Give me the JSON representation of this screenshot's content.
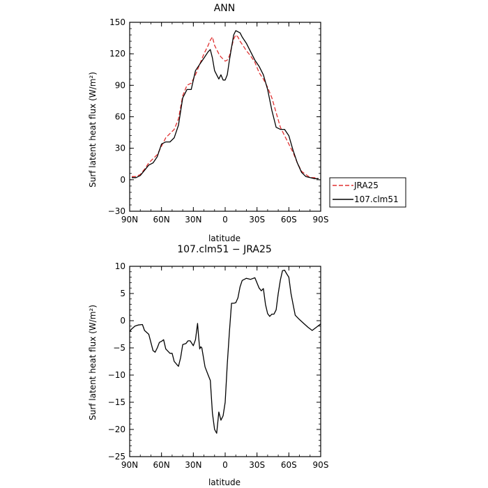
{
  "chart_data": [
    {
      "type": "line",
      "title": "ANN",
      "xlabel": "latitude",
      "ylabel": "Surf latent heat flux (W/m²)",
      "xlim": [
        90,
        -90
      ],
      "ylim": [
        -30,
        150
      ],
      "xticks": [
        90,
        60,
        30,
        0,
        -30,
        -60,
        -90
      ],
      "xtick_labels": [
        "90N",
        "60N",
        "30N",
        "0",
        "30S",
        "60S",
        "90S"
      ],
      "yticks": [
        -30,
        0,
        30,
        60,
        90,
        120,
        150
      ],
      "ytick_labels": [
        "−30",
        "0",
        "30",
        "60",
        "90",
        "120",
        "150"
      ],
      "legend": {
        "placement": "right",
        "entries": [
          "JRA25",
          "107.clm51"
        ]
      },
      "series": [
        {
          "name": "JRA25",
          "color": "#e03030",
          "dash": "dashed",
          "x": [
            88,
            84,
            80,
            76,
            72,
            68,
            64,
            60,
            56,
            52,
            48,
            44,
            40,
            36,
            32,
            28,
            24,
            20,
            16,
            14,
            12,
            10,
            8,
            6,
            4,
            2,
            0,
            -2,
            -4,
            -6,
            -8,
            -10,
            -12,
            -14,
            -16,
            -20,
            -24,
            -28,
            -32,
            -36,
            -40,
            -44,
            -48,
            -52,
            -56,
            -60,
            -64,
            -68,
            -72,
            -76,
            -80,
            -84,
            -88
          ],
          "y": [
            3,
            3,
            5,
            10,
            16,
            20,
            24,
            32,
            40,
            44,
            48,
            58,
            80,
            90,
            92,
            100,
            110,
            120,
            128,
            133,
            136,
            128,
            124,
            120,
            117,
            115,
            113,
            114,
            118,
            126,
            134,
            138,
            136,
            132,
            129,
            123,
            118,
            112,
            102,
            96,
            88,
            78,
            64,
            50,
            42,
            34,
            26,
            16,
            8,
            5,
            2,
            2,
            1
          ]
        },
        {
          "name": "107.clm51",
          "color": "#000000",
          "dash": "solid",
          "x": [
            88,
            84,
            80,
            76,
            72,
            68,
            64,
            60,
            56,
            52,
            48,
            44,
            40,
            36,
            32,
            28,
            24,
            20,
            16,
            14,
            12,
            10,
            8,
            6,
            4,
            2,
            0,
            -2,
            -4,
            -6,
            -8,
            -10,
            -12,
            -14,
            -16,
            -20,
            -24,
            -28,
            -32,
            -36,
            -40,
            -44,
            -48,
            -52,
            -56,
            -60,
            -64,
            -68,
            -72,
            -76,
            -80,
            -84,
            -88
          ],
          "y": [
            2,
            2,
            4,
            9,
            14,
            16,
            22,
            34,
            36,
            36,
            40,
            52,
            78,
            86,
            86,
            104,
            110,
            116,
            122,
            124,
            116,
            104,
            100,
            96,
            100,
            95,
            95,
            100,
            114,
            126,
            138,
            142,
            141,
            140,
            136,
            130,
            122,
            114,
            108,
            100,
            86,
            66,
            50,
            48,
            48,
            42,
            28,
            16,
            7,
            3,
            2,
            1,
            1
          ]
        }
      ]
    },
    {
      "type": "line",
      "title": "107.clm51 − JRA25",
      "xlabel": "latitude",
      "ylabel": "Surf latent heat flux (W/m²)",
      "xlim": [
        90,
        -90
      ],
      "ylim": [
        -25,
        10
      ],
      "xticks": [
        90,
        60,
        30,
        0,
        -30,
        -60,
        -90
      ],
      "xtick_labels": [
        "90N",
        "60N",
        "30N",
        "0",
        "30S",
        "60S",
        "90S"
      ],
      "yticks": [
        -25,
        -20,
        -15,
        -10,
        -5,
        0,
        5,
        10
      ],
      "ytick_labels": [
        "−25",
        "−20",
        "−15",
        "−10",
        "−5",
        "0",
        "5",
        "10"
      ],
      "series": [
        {
          "color": "#000000",
          "dash": "solid",
          "x": [
            90,
            88,
            85,
            82,
            78,
            76,
            72,
            68,
            66,
            64,
            62,
            60,
            58,
            56,
            52,
            50,
            48,
            44,
            42,
            40,
            37,
            35,
            33,
            30,
            28,
            26,
            25,
            24,
            23,
            22,
            19,
            16,
            14,
            12,
            10,
            8,
            6,
            4,
            2,
            0,
            -2,
            -4,
            -6,
            -8,
            -10,
            -12,
            -14,
            -16,
            -20,
            -24,
            -28,
            -32,
            -34,
            -36,
            -38,
            -40,
            -42,
            -44,
            -46,
            -48,
            -50,
            -52,
            -54,
            -56,
            -58,
            -60,
            -62,
            -64,
            -66,
            -68,
            -70,
            -74,
            -78,
            -82,
            -86,
            -90
          ],
          "y": [
            -2,
            -1.5,
            -1,
            -0.8,
            -0.7,
            -1.8,
            -2.5,
            -5.5,
            -5.8,
            -5,
            -4,
            -3.8,
            -3.5,
            -5.2,
            -6,
            -6,
            -7.5,
            -8.4,
            -6.8,
            -4.4,
            -4.2,
            -3.7,
            -3.7,
            -4.6,
            -3.5,
            -0.5,
            -3,
            -5.2,
            -4.8,
            -5,
            -8.5,
            -10,
            -11,
            -17,
            -20,
            -20.7,
            -16.8,
            -18.3,
            -17.5,
            -15,
            -8,
            -2,
            3.2,
            3.2,
            3.3,
            4.2,
            6.2,
            7.4,
            7.8,
            7.6,
            7.9,
            6,
            5.5,
            5.9,
            3,
            1.3,
            0.8,
            1.2,
            1.2,
            2,
            5,
            7.5,
            9.2,
            9.3,
            8.6,
            8,
            5,
            3,
            1,
            0.6,
            0.2,
            -0.5,
            -1.2,
            -1.8,
            -1.2,
            -0.6
          ]
        }
      ]
    }
  ]
}
